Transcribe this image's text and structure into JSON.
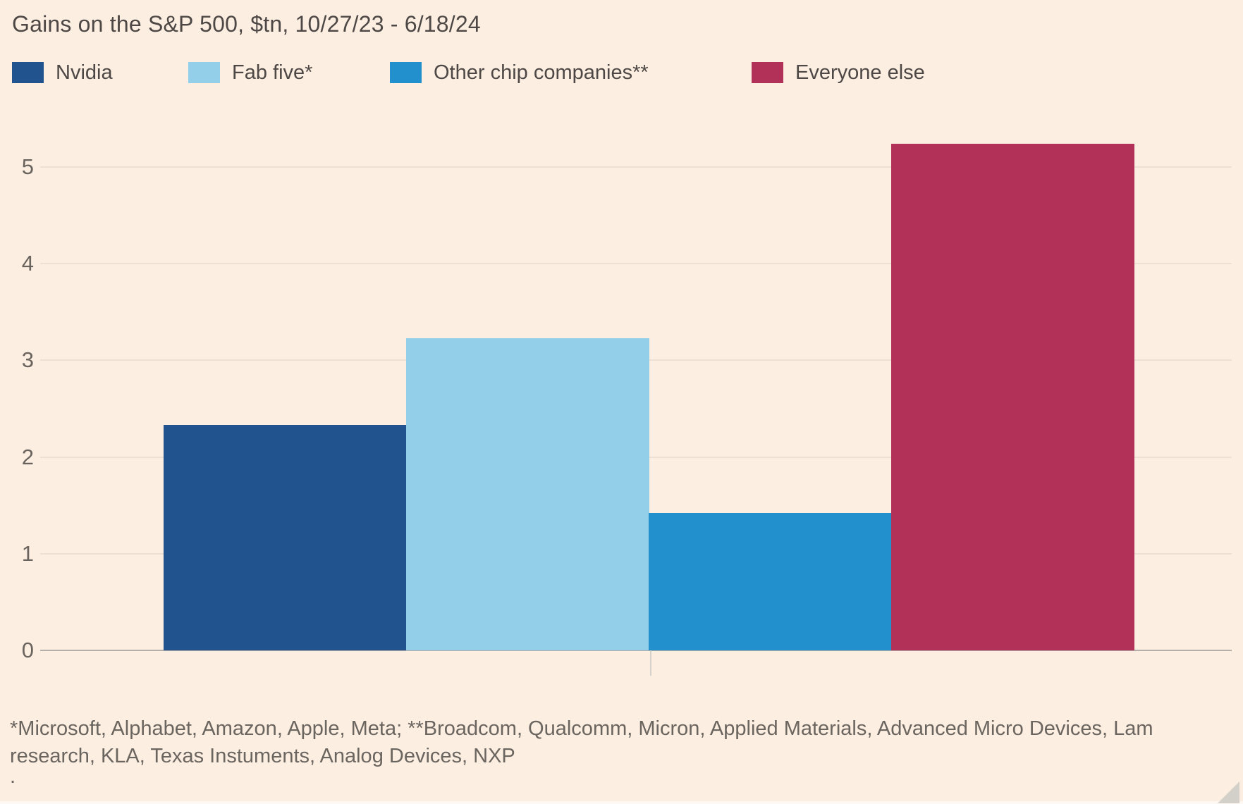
{
  "chart": {
    "title": "Gains on the S&P 500, $tn, 10/27/23 - 6/18/24",
    "footnote": "*Microsoft, Alphabet, Amazon, Apple, Meta; **Broadcom, Qualcomm, Micron, Applied Materials, Advanced Micro Devices, Lam research, KLA, Texas Instuments, Analog Devices, NXP",
    "stray_dot": "."
  },
  "chart_data": {
    "type": "bar",
    "title": "Gains on the S&P 500, $tn, 10/27/23 - 6/18/24",
    "categories": [
      "Nvidia",
      "Fab five*",
      "Other chip companies**",
      "Everyone else"
    ],
    "values": [
      2.33,
      3.23,
      1.42,
      5.24
    ],
    "colors": [
      "#21548f",
      "#93cfe9",
      "#2190cd",
      "#b23158"
    ],
    "yticks": [
      0,
      1,
      2,
      3,
      4,
      5
    ],
    "ylim": [
      0,
      5.6
    ],
    "xlabel": "",
    "ylabel": "Gains on the S&P 500, $tn",
    "grid": true,
    "legend_position": "top",
    "footnote": "*Microsoft, Alphabet, Amazon, Apple, Meta; **Broadcom, Qualcomm, Micron, Applied Materials, Advanced Micro Devices, Lam research, KLA, Texas Instuments, Analog Devices, NXP"
  },
  "colors": {
    "background": "#fdeee2",
    "gridline": "#eee0d2",
    "axis_line": "#b4afa9",
    "text_primary": "#4d4845",
    "text_secondary": "#6b655f"
  }
}
